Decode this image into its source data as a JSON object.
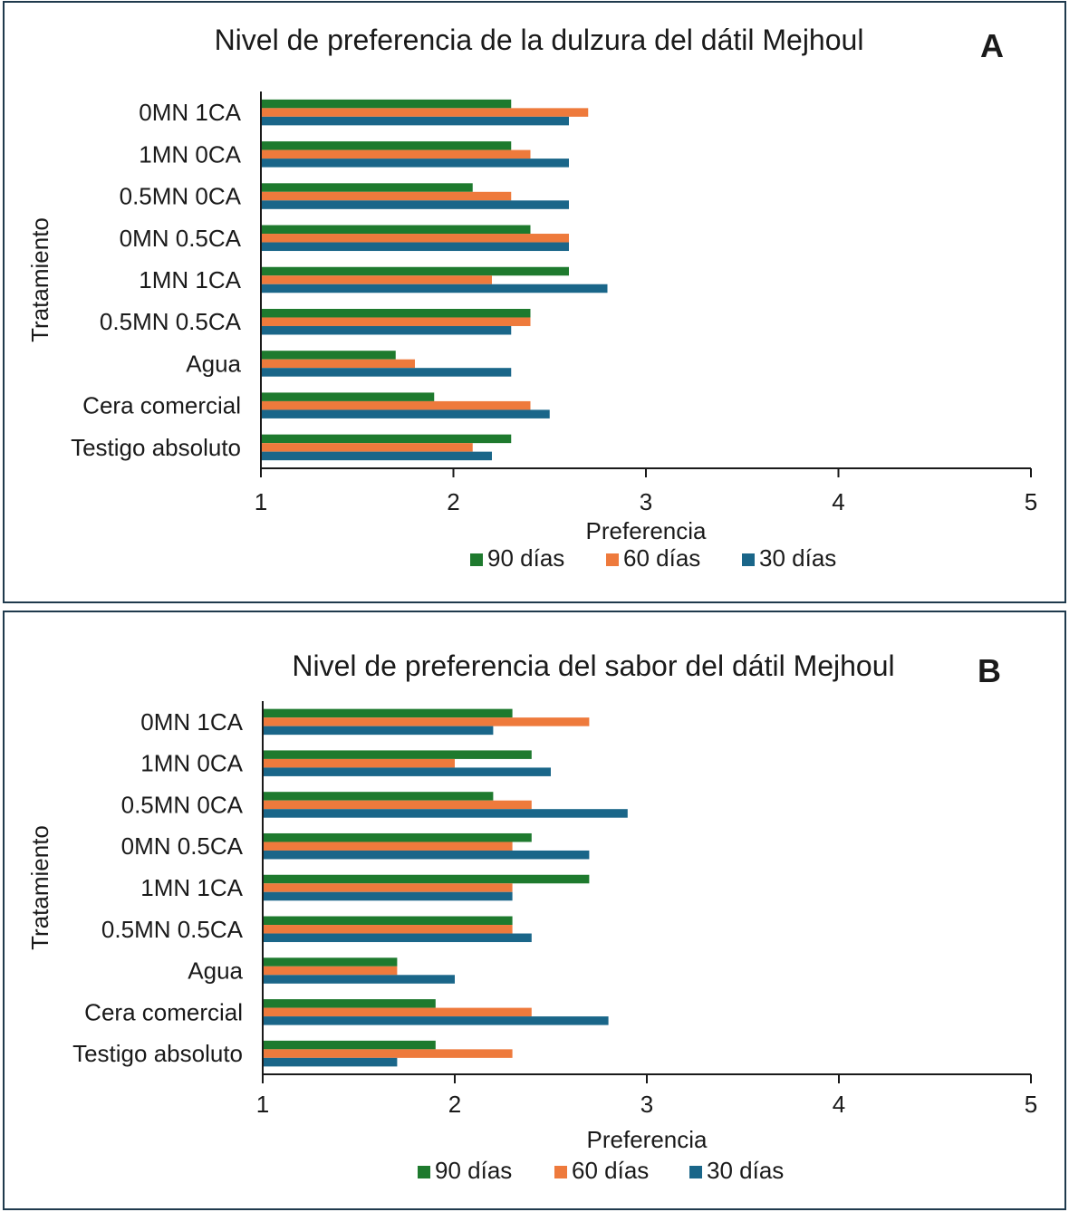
{
  "colors": {
    "90d": "#1e7a2e",
    "60d": "#ee7a3c",
    "30d": "#1a6689"
  },
  "chart_data": [
    {
      "type": "bar",
      "orientation": "horizontal",
      "panel_label": "A",
      "title": "Nivel de preferencia de la dulzura del dátil Mejhoul",
      "xlabel": "Preferencia",
      "ylabel": "Tratamiento",
      "xlim": [
        1,
        5
      ],
      "xticks": [
        "1",
        "2",
        "3",
        "4",
        "5"
      ],
      "legend_position": "bottom",
      "categories": [
        "0MN 1CA",
        "1MN 0CA",
        "0.5MN 0CA",
        "0MN 0.5CA",
        "1MN 1CA",
        "0.5MN 0.5CA",
        "Agua",
        "Cera comercial",
        "Testigo absoluto"
      ],
      "series": [
        {
          "name": "90 días",
          "color": "#1e7a2e",
          "values": [
            2.3,
            2.3,
            2.1,
            2.4,
            2.6,
            2.4,
            1.7,
            1.9,
            2.3
          ]
        },
        {
          "name": "60 días",
          "color": "#ee7a3c",
          "values": [
            2.7,
            2.4,
            2.3,
            2.6,
            2.2,
            2.4,
            1.8,
            2.4,
            2.1
          ]
        },
        {
          "name": "30 días",
          "color": "#1a6689",
          "values": [
            2.6,
            2.6,
            2.6,
            2.6,
            2.8,
            2.3,
            2.3,
            2.5,
            2.2
          ]
        }
      ]
    },
    {
      "type": "bar",
      "orientation": "horizontal",
      "panel_label": "B",
      "title": "Nivel de preferencia del sabor del dátil Mejhoul",
      "xlabel": "Preferencia",
      "ylabel": "Tratamiento",
      "xlim": [
        1,
        5
      ],
      "xticks": [
        "1",
        "2",
        "3",
        "4",
        "5"
      ],
      "legend_position": "bottom",
      "categories": [
        "0MN 1CA",
        "1MN 0CA",
        "0.5MN 0CA",
        "0MN 0.5CA",
        "1MN 1CA",
        "0.5MN 0.5CA",
        "Agua",
        "Cera comercial",
        "Testigo absoluto"
      ],
      "series": [
        {
          "name": "90 días",
          "color": "#1e7a2e",
          "values": [
            2.3,
            2.4,
            2.2,
            2.4,
            2.7,
            2.3,
            1.7,
            1.9,
            1.9
          ]
        },
        {
          "name": "60 días",
          "color": "#ee7a3c",
          "values": [
            2.7,
            2.0,
            2.4,
            2.3,
            2.3,
            2.3,
            1.7,
            2.4,
            2.3
          ]
        },
        {
          "name": "30 días",
          "color": "#1a6689",
          "values": [
            2.2,
            2.5,
            2.9,
            2.7,
            2.3,
            2.4,
            2.0,
            2.8,
            1.7
          ]
        }
      ]
    }
  ]
}
